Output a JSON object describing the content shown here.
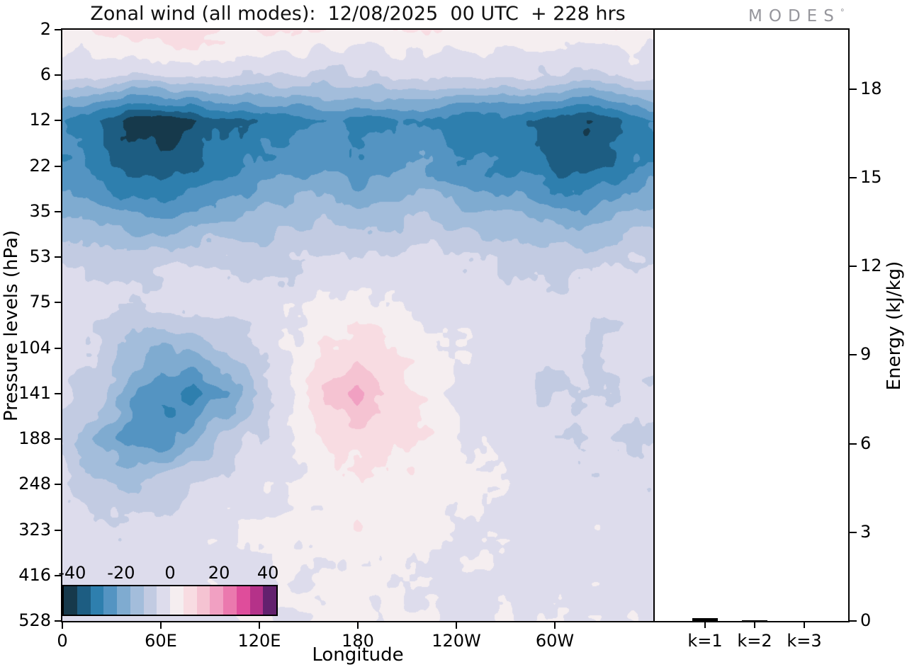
{
  "title": "Zonal wind (all modes):  12/08/2025  00 UTC  + 228 hrs",
  "logo": {
    "text": "MODES",
    "superscript": "°"
  },
  "chart_data": [
    {
      "type": "heatmap",
      "title": "Zonal wind (all modes):  12/08/2025  00 UTC  + 228 hrs",
      "xlabel": "Longitude",
      "ylabel": "Pressure levels (hPa)",
      "x_range": [
        0,
        360
      ],
      "x_ticks": [
        {
          "value": 0,
          "label": "0"
        },
        {
          "value": 60,
          "label": "60E"
        },
        {
          "value": 120,
          "label": "120E"
        },
        {
          "value": 180,
          "label": "180"
        },
        {
          "value": 240,
          "label": "120W"
        },
        {
          "value": 300,
          "label": "60W"
        }
      ],
      "y_tick_labels": [
        "2",
        "6",
        "12",
        "22",
        "35",
        "53",
        "75",
        "104",
        "141",
        "188",
        "248",
        "323",
        "416",
        "528"
      ],
      "levels_hpa": [
        2,
        6,
        12,
        22,
        35,
        53,
        75,
        104,
        141,
        188,
        248,
        323,
        416,
        528
      ],
      "lons": [
        0,
        20,
        40,
        60,
        80,
        100,
        120,
        140,
        160,
        180,
        200,
        220,
        240,
        260,
        280,
        300,
        320,
        340,
        360
      ],
      "values": [
        [
          3,
          5,
          7,
          8,
          9,
          7,
          6,
          7,
          4,
          3,
          4,
          5,
          6,
          4,
          3,
          4,
          5,
          4,
          3
        ],
        [
          -3,
          -4,
          -6,
          -5,
          -4,
          -5,
          -6,
          -7,
          -6,
          -5,
          -4,
          -5,
          -6,
          -5,
          -4,
          -6,
          -7,
          -5,
          -3
        ],
        [
          -28,
          -32,
          -40,
          -42,
          -38,
          -34,
          -32,
          -30,
          -28,
          -30,
          -28,
          -26,
          -30,
          -32,
          -30,
          -36,
          -40,
          -34,
          -28
        ],
        [
          -26,
          -30,
          -36,
          -38,
          -34,
          -30,
          -26,
          -24,
          -22,
          -26,
          -24,
          -22,
          -26,
          -28,
          -30,
          -34,
          -36,
          -30,
          -26
        ],
        [
          -16,
          -20,
          -24,
          -24,
          -20,
          -18,
          -16,
          -14,
          -12,
          -16,
          -14,
          -12,
          -14,
          -16,
          -18,
          -20,
          -22,
          -18,
          -16
        ],
        [
          -6,
          -8,
          -9,
          -8,
          -7,
          -6,
          -7,
          -6,
          -4,
          -6,
          -5,
          -4,
          -5,
          -6,
          -7,
          -8,
          -8,
          -7,
          -6
        ],
        [
          -3,
          -4,
          -5,
          -4,
          -3,
          -2,
          -3,
          -2,
          1,
          2,
          1,
          -1,
          -2,
          -3,
          -3,
          -4,
          -4,
          -3,
          -3
        ],
        [
          -3,
          -6,
          -12,
          -16,
          -14,
          -9,
          -4,
          0,
          6,
          8,
          6,
          2,
          -1,
          -3,
          -2,
          -4,
          -5,
          -4,
          -3
        ],
        [
          -4,
          -8,
          -18,
          -28,
          -30,
          -22,
          -10,
          -1,
          12,
          17,
          9,
          4,
          -2,
          -4,
          -5,
          -6,
          -5,
          -4,
          -4
        ],
        [
          -6,
          -16,
          -24,
          -26,
          -18,
          -10,
          -4,
          0,
          6,
          8,
          8,
          6,
          1,
          -2,
          -3,
          -4,
          -4,
          -5,
          -6
        ],
        [
          -4,
          -10,
          -12,
          -9,
          -5,
          -3,
          -2,
          0,
          2,
          6,
          6,
          3,
          1,
          -1,
          -2,
          -3,
          -3,
          -4,
          -4
        ],
        [
          -2,
          -3,
          -4,
          -3,
          -2,
          -1,
          0,
          2,
          2,
          4,
          4,
          3,
          0,
          -1,
          -2,
          -2,
          -2,
          -2,
          -2
        ],
        [
          -2,
          -2,
          -3,
          -2,
          -2,
          -1,
          -1,
          0,
          1,
          1,
          1,
          0,
          -1,
          -1,
          -2,
          -2,
          -2,
          -2,
          -2
        ],
        [
          -2,
          -2,
          -2,
          -2,
          -1,
          -1,
          0,
          0,
          1,
          2,
          1,
          0,
          -1,
          -1,
          -1,
          -2,
          -2,
          -2,
          -2
        ]
      ],
      "colormap": {
        "vmin": -44,
        "vmax": 44,
        "colors": [
          "#16394b",
          "#1d5d82",
          "#2e7fae",
          "#5494c2",
          "#7fabd0",
          "#a3bddb",
          "#c2cbe2",
          "#dddcec",
          "#f5eef0",
          "#f8dce2",
          "#f5c3d2",
          "#f1a0c2",
          "#eb79ae",
          "#df4d9b",
          "#b53289",
          "#63216e"
        ],
        "tick_values": [
          -40,
          -20,
          0,
          20,
          40
        ],
        "tick_labels": [
          "-40",
          "-20",
          "0",
          "20",
          "40"
        ]
      }
    },
    {
      "type": "bar",
      "categories": [
        "k=1",
        "k=2",
        "k=3"
      ],
      "values": [
        0.1,
        0.02,
        0.01
      ],
      "ylabel": "Energy (kJ/kg)",
      "ylim": [
        0,
        20
      ],
      "y_ticks": [
        0,
        3,
        6,
        9,
        12,
        15,
        18
      ],
      "bar_color": "#000000"
    }
  ]
}
